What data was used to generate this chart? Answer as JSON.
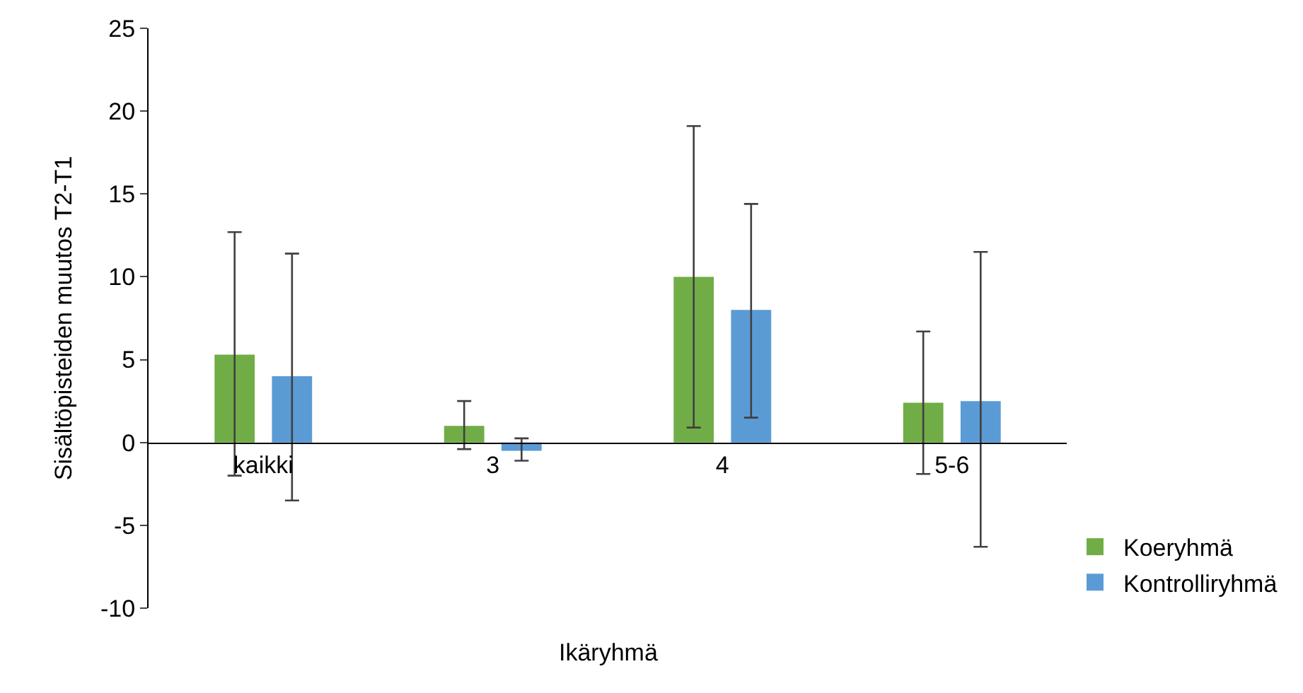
{
  "chart_data": {
    "type": "bar",
    "xlabel": "Ikäryhmä",
    "ylabel": "Sisältöpisteiden muutos T2-T1",
    "categories": [
      "kaikki",
      "3",
      "4",
      "5-6"
    ],
    "series": [
      {
        "name": "Koeryhmä",
        "color": "#70ad47",
        "values": [
          5.3,
          1.0,
          10.0,
          2.4
        ],
        "errors": [
          [
            -2.0,
            12.7
          ],
          [
            -0.4,
            2.5
          ],
          [
            0.9,
            19.1
          ],
          [
            -1.9,
            6.7
          ]
        ]
      },
      {
        "name": "Kontrolliryhmä",
        "color": "#5b9bd5",
        "values": [
          4.0,
          -0.5,
          8.0,
          2.5
        ],
        "errors": [
          [
            -3.5,
            11.4
          ],
          [
            -1.1,
            0.25
          ],
          [
            1.5,
            14.4
          ],
          [
            -6.3,
            11.5
          ]
        ]
      }
    ],
    "ylim": [
      -10,
      25
    ],
    "yticks": [
      -10,
      -5,
      0,
      5,
      10,
      15,
      20,
      25
    ],
    "legend": "bottom right"
  }
}
